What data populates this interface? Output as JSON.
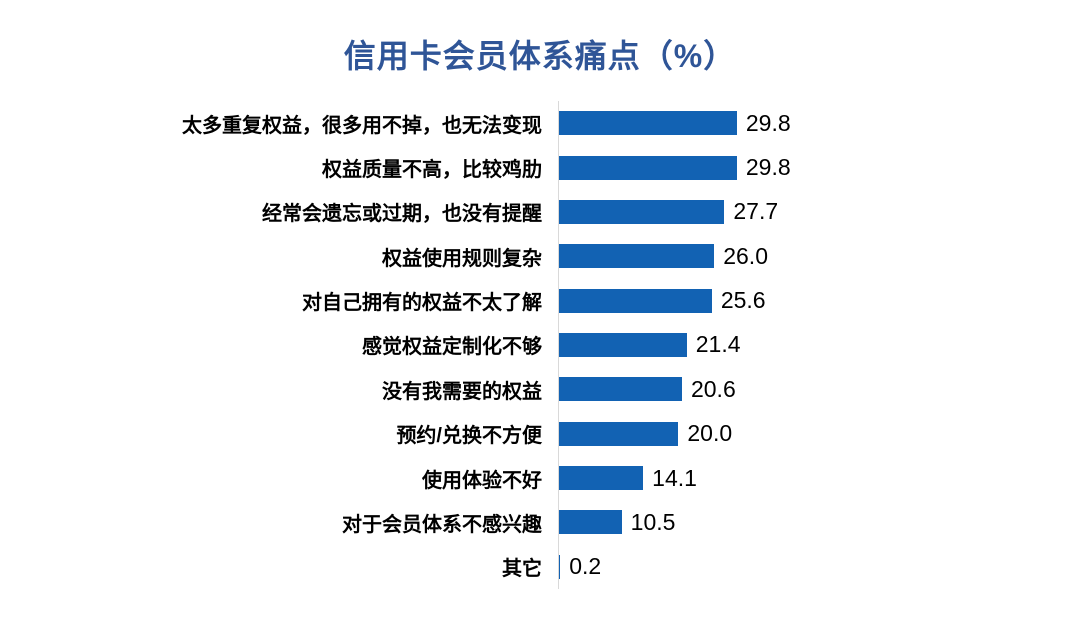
{
  "chart_data": {
    "type": "bar",
    "orientation": "horizontal",
    "title": "信用卡会员体系痛点（%）",
    "categories": [
      "太多重复权益，很多用不掉，也无法变现",
      "权益质量不高，比较鸡肋",
      "经常会遗忘或过期，也没有提醒",
      "权益使用规则复杂",
      "对自己拥有的权益不太了解",
      "感觉权益定制化不够",
      "没有我需要的权益",
      "预约/兑换不方便",
      "使用体验不好",
      "对于会员体系不感兴趣",
      "其它"
    ],
    "values": [
      29.8,
      29.8,
      27.7,
      26.0,
      25.6,
      21.4,
      20.6,
      20.0,
      14.1,
      10.5,
      0.2
    ],
    "value_labels": [
      "29.8",
      "29.8",
      "27.7",
      "26.0",
      "25.6",
      "21.4",
      "20.6",
      "20.0",
      "14.1",
      "10.5",
      "0.2"
    ],
    "xlabel": "",
    "ylabel": "",
    "xlim": [
      0,
      32
    ],
    "grid": false,
    "legend": false,
    "data_labels": true,
    "colors": {
      "bar": "#1262B3",
      "title": "#2F5597",
      "axis_line": "#D9D9D9",
      "label_text": "#000000"
    }
  }
}
